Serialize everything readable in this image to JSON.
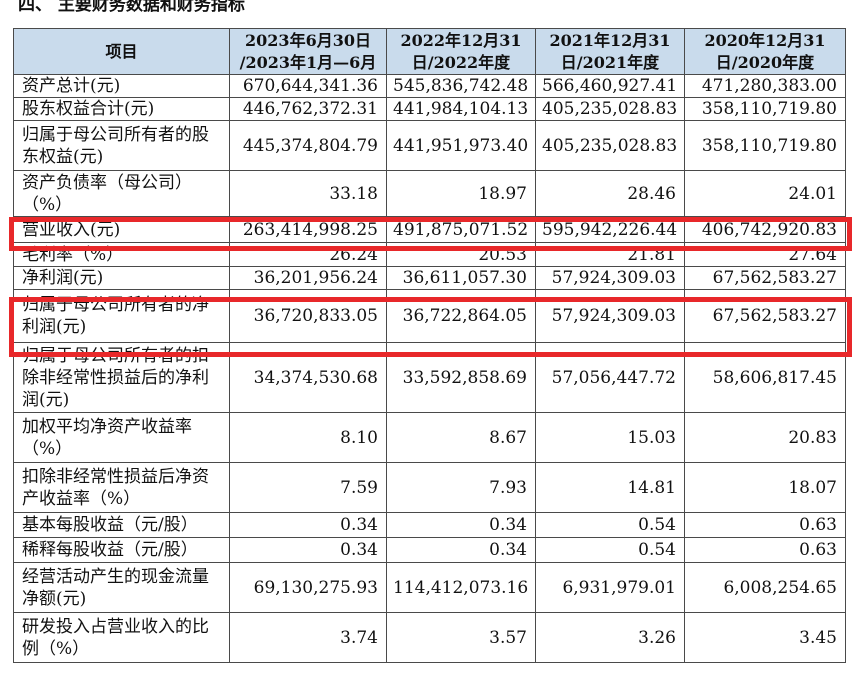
{
  "heading": "四、 主要财务数据和财务指标",
  "table": {
    "header": {
      "item": "项目",
      "periods": [
        "2023年6月30日 /2023年1月—6月",
        "2022年12月31 日/2022年度",
        "2021年12月31 日/2021年度",
        "2020年12月31 日/2020年度"
      ]
    },
    "rows": [
      {
        "label": "资产总计(元)",
        "values": [
          "670,644,341.36",
          "545,836,742.48",
          "566,460,927.41",
          "471,280,383.00"
        ]
      },
      {
        "label": "股东权益合计(元)",
        "values": [
          "446,762,372.31",
          "441,984,104.13",
          "405,235,028.83",
          "358,110,719.80"
        ]
      },
      {
        "label": "归属于母公司所有者的股东权益(元)",
        "values": [
          "445,374,804.79",
          "441,951,973.40",
          "405,235,028.83",
          "358,110,719.80"
        ]
      },
      {
        "label": "资产负债率（母公司）（%）",
        "values": [
          "33.18",
          "18.97",
          "28.46",
          "24.01"
        ]
      },
      {
        "label": "营业收入(元)",
        "values": [
          "263,414,998.25",
          "491,875,071.52",
          "595,942,226.44",
          "406,742,920.83"
        ]
      },
      {
        "label": "毛利率（%）",
        "values": [
          "26.24",
          "20.53",
          "21.81",
          "27.64"
        ]
      },
      {
        "label": "净利润(元)",
        "values": [
          "36,201,956.24",
          "36,611,057.30",
          "57,924,309.03",
          "67,562,583.27"
        ]
      },
      {
        "label": "归属于母公司所有者的净利润(元)",
        "values": [
          "36,720,833.05",
          "36,722,864.05",
          "57,924,309.03",
          "67,562,583.27"
        ]
      },
      {
        "label": "归属于母公司所有者的扣除非经常性损益后的净利润(元)",
        "values": [
          "34,374,530.68",
          "33,592,858.69",
          "57,056,447.72",
          "58,606,817.45"
        ]
      },
      {
        "label": "加权平均净资产收益率（%）",
        "values": [
          "8.10",
          "8.67",
          "15.03",
          "20.83"
        ]
      },
      {
        "label": "扣除非经常性损益后净资产收益率（%）",
        "values": [
          "7.59",
          "7.93",
          "14.81",
          "18.07"
        ]
      },
      {
        "label": "基本每股收益（元/股）",
        "values": [
          "0.34",
          "0.34",
          "0.54",
          "0.63"
        ]
      },
      {
        "label": "稀释每股收益（元/股）",
        "values": [
          "0.34",
          "0.34",
          "0.54",
          "0.63"
        ]
      },
      {
        "label": "经营活动产生的现金流量净额(元)",
        "values": [
          "69,130,275.93",
          "114,412,073.16",
          "6,931,979.01",
          "6,008,254.65"
        ]
      },
      {
        "label": "研发投入占营业收入的比例（%）",
        "values": [
          "3.74",
          "3.57",
          "3.26",
          "3.45"
        ]
      }
    ]
  },
  "highlight_color": "#e8282a"
}
